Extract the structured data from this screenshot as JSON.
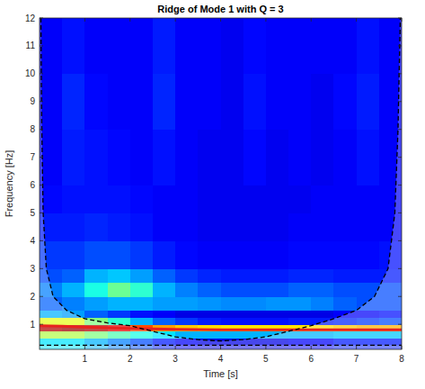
{
  "chart_data": {
    "type": "heatmap",
    "title": "Ridge of Mode 1 with Q = 3",
    "x_label": "Time [s]",
    "y_label": "Frequency [Hz]",
    "xlim": [
      0,
      8
    ],
    "ylim": [
      0.1,
      12
    ],
    "xticks": [
      1,
      2,
      3,
      4,
      5,
      6,
      7,
      8
    ],
    "yticks": [
      1,
      2,
      3,
      4,
      5,
      6,
      7,
      8,
      9,
      10,
      11,
      12
    ],
    "zlim": [
      0,
      1
    ],
    "x_edges": [
      0,
      0.5,
      1,
      1.5,
      2,
      2.5,
      3,
      3.5,
      4,
      4.5,
      5,
      5.5,
      6,
      6.5,
      7,
      7.5,
      8
    ],
    "y_edges": [
      0.1,
      0.5,
      0.75,
      1,
      1.25,
      1.5,
      2,
      2.5,
      3,
      4,
      5,
      6,
      8,
      10,
      12
    ],
    "cells": [
      [
        0.35,
        0.35,
        0.3,
        0.25,
        0.2,
        0.15,
        0.12,
        0.1,
        0.1,
        0.1,
        0.1,
        0.12,
        0.12,
        0.15,
        0.15,
        0.15
      ],
      [
        0.55,
        0.55,
        0.5,
        0.45,
        0.4,
        0.35,
        0.3,
        0.3,
        0.3,
        0.3,
        0.3,
        0.3,
        0.3,
        0.32,
        0.32,
        0.32
      ],
      [
        0.95,
        0.97,
        0.95,
        0.9,
        0.8,
        0.72,
        0.68,
        0.66,
        0.65,
        0.65,
        0.65,
        0.65,
        0.66,
        0.68,
        0.7,
        0.7
      ],
      [
        0.6,
        0.6,
        0.5,
        0.42,
        0.3,
        0.22,
        0.18,
        0.15,
        0.14,
        0.14,
        0.14,
        0.15,
        0.15,
        0.16,
        0.18,
        0.2
      ],
      [
        0.3,
        0.28,
        0.22,
        0.18,
        0.14,
        0.12,
        0.1,
        0.1,
        0.1,
        0.1,
        0.1,
        0.1,
        0.1,
        0.12,
        0.12,
        0.14
      ],
      [
        0.22,
        0.25,
        0.28,
        0.3,
        0.3,
        0.28,
        0.28,
        0.27,
        0.26,
        0.26,
        0.27,
        0.27,
        0.25,
        0.22,
        0.2,
        0.2
      ],
      [
        0.25,
        0.3,
        0.4,
        0.48,
        0.42,
        0.3,
        0.25,
        0.22,
        0.2,
        0.2,
        0.2,
        0.22,
        0.22,
        0.2,
        0.2,
        0.2
      ],
      [
        0.2,
        0.22,
        0.3,
        0.32,
        0.28,
        0.22,
        0.18,
        0.16,
        0.15,
        0.15,
        0.15,
        0.16,
        0.16,
        0.15,
        0.15,
        0.15
      ],
      [
        0.18,
        0.18,
        0.2,
        0.2,
        0.18,
        0.15,
        0.13,
        0.12,
        0.12,
        0.12,
        0.12,
        0.13,
        0.13,
        0.13,
        0.13,
        0.14
      ],
      [
        0.15,
        0.15,
        0.16,
        0.15,
        0.14,
        0.12,
        0.12,
        0.11,
        0.11,
        0.11,
        0.11,
        0.12,
        0.12,
        0.12,
        0.12,
        0.12
      ],
      [
        0.13,
        0.14,
        0.14,
        0.14,
        0.13,
        0.12,
        0.12,
        0.11,
        0.11,
        0.11,
        0.11,
        0.11,
        0.12,
        0.12,
        0.12,
        0.12
      ],
      [
        0.12,
        0.15,
        0.14,
        0.13,
        0.12,
        0.14,
        0.12,
        0.11,
        0.11,
        0.13,
        0.11,
        0.12,
        0.11,
        0.12,
        0.14,
        0.12
      ],
      [
        0.12,
        0.16,
        0.13,
        0.12,
        0.12,
        0.16,
        0.12,
        0.12,
        0.11,
        0.14,
        0.12,
        0.12,
        0.11,
        0.13,
        0.15,
        0.12
      ],
      [
        0.12,
        0.14,
        0.12,
        0.12,
        0.12,
        0.15,
        0.12,
        0.12,
        0.11,
        0.13,
        0.12,
        0.12,
        0.12,
        0.12,
        0.14,
        0.12
      ]
    ],
    "series": [
      {
        "type": "line",
        "color": "#e8221e",
        "line_style": "solid",
        "x": [
          0,
          0.5,
          1,
          1.5,
          2,
          3,
          4,
          5,
          6,
          7,
          8
        ],
        "values": [
          0.95,
          0.93,
          0.9,
          0.88,
          0.85,
          0.82,
          0.8,
          0.8,
          0.8,
          0.8,
          0.8
        ]
      },
      {
        "type": "line",
        "color": "#000000",
        "line_style": "dashed",
        "x": [
          0.03,
          0.05,
          0.08,
          0.15,
          0.3,
          0.6,
          1,
          1.5,
          2,
          2.5,
          3,
          3.5,
          4,
          4.5,
          5,
          5.5,
          6,
          6.5,
          7,
          7.4,
          7.7,
          7.85,
          7.92,
          7.97
        ],
        "values": [
          12,
          8,
          5,
          3,
          2,
          1.5,
          1.2,
          1.05,
          0.95,
          0.75,
          0.55,
          0.45,
          0.4,
          0.45,
          0.55,
          0.75,
          0.95,
          1.2,
          1.5,
          2,
          3,
          5,
          8,
          12
        ]
      },
      {
        "type": "line",
        "color": "#000000",
        "line_style": "dashed",
        "x": [
          0,
          8
        ],
        "values": [
          0.25,
          0.25
        ]
      }
    ]
  }
}
